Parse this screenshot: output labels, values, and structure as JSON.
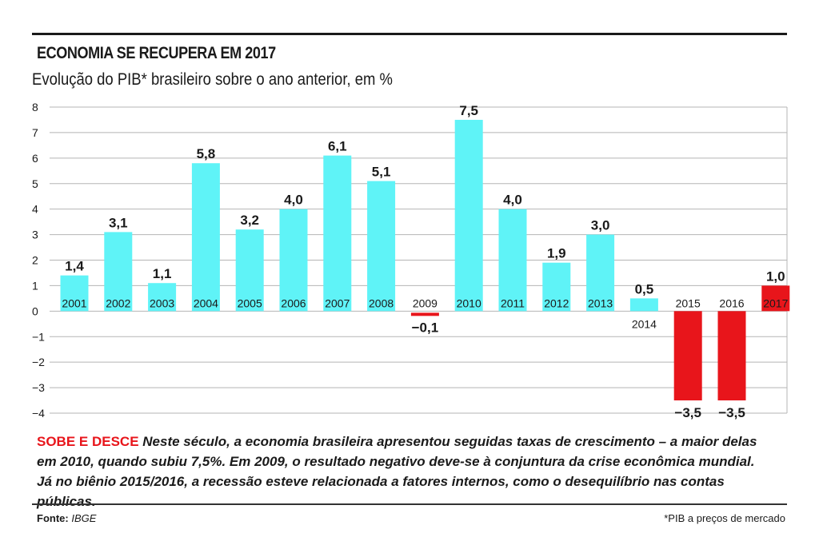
{
  "chart_data": {
    "type": "bar",
    "title": "ECONOMIA SE RECUPERA EM 2017",
    "subtitle": "Evolução do PIB* brasileiro sobre o ano anterior, em %",
    "categories": [
      "2001",
      "2002",
      "2003",
      "2004",
      "2005",
      "2006",
      "2007",
      "2008",
      "2009",
      "2010",
      "2011",
      "2012",
      "2013",
      "2014",
      "2015",
      "2016",
      "2017"
    ],
    "values": [
      1.4,
      3.1,
      1.1,
      5.8,
      3.2,
      4.0,
      6.1,
      5.1,
      -0.1,
      7.5,
      4.0,
      1.9,
      3.0,
      0.5,
      -3.5,
      -3.5,
      1.0
    ],
    "value_labels": [
      "1,4",
      "3,1",
      "1,1",
      "5,8",
      "3,2",
      "4,0",
      "6,1",
      "5,1",
      "−0,1",
      "7,5",
      "4,0",
      "1,9",
      "3,0",
      "0,5",
      "−3,5",
      "−3,5",
      "1,0"
    ],
    "bar_colors": [
      "#5ff3f7",
      "#5ff3f7",
      "#5ff3f7",
      "#5ff3f7",
      "#5ff3f7",
      "#5ff3f7",
      "#5ff3f7",
      "#5ff3f7",
      "#e8151b",
      "#5ff3f7",
      "#5ff3f7",
      "#5ff3f7",
      "#5ff3f7",
      "#5ff3f7",
      "#e8151b",
      "#e8151b",
      "#e8151b"
    ],
    "ylim": [
      -4,
      8
    ],
    "yticks": [
      8,
      7,
      6,
      5,
      4,
      3,
      2,
      1,
      0,
      -1,
      -2,
      -3,
      -4
    ],
    "ytick_labels": [
      "8",
      "7",
      "6",
      "5",
      "4",
      "3",
      "2",
      "1",
      "0",
      "−1",
      "−2",
      "−3",
      "−4"
    ],
    "grid": true,
    "xlabel": "",
    "ylabel": ""
  },
  "caption": {
    "highlight": "SOBE E DESCE",
    "text": " Neste século, a economia brasileira apresentou seguidas taxas de crescimento – a maior delas em 2010, quando subiu 7,5%. Em 2009, o resultado negativo deve-se à conjuntura da crise econômica mundial. Já no biênio 2015/2016, a recessão esteve relacionada a fatores internos, como o desequilíbrio nas contas públicas."
  },
  "source": {
    "label": "Fonte:",
    "value": "IBGE"
  },
  "footnote": "*PIB a preços de mercado",
  "colors": {
    "positive": "#5ff3f7",
    "negative": "#e8151b",
    "highlight": "#e8151b"
  }
}
